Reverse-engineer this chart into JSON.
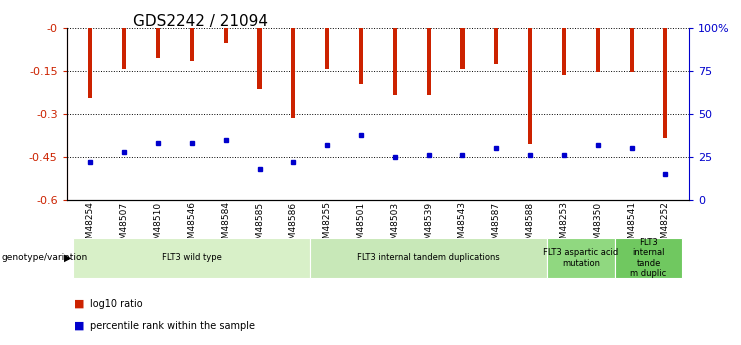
{
  "title": "GDS2242 / 21094",
  "samples": [
    "GSM48254",
    "GSM48507",
    "GSM48510",
    "GSM48546",
    "GSM48584",
    "GSM48585",
    "GSM48586",
    "GSM48255",
    "GSM48501",
    "GSM48503",
    "GSM48539",
    "GSM48543",
    "GSM48587",
    "GSM48588",
    "GSM48253",
    "GSM48350",
    "GSM48541",
    "GSM48252"
  ],
  "log10_ratio": [
    -0.245,
    -0.145,
    -0.105,
    -0.115,
    -0.055,
    -0.215,
    -0.315,
    -0.145,
    -0.195,
    -0.235,
    -0.235,
    -0.145,
    -0.125,
    -0.405,
    -0.165,
    -0.155,
    -0.155,
    -0.385
  ],
  "percentile_rank": [
    22,
    28,
    33,
    33,
    35,
    18,
    22,
    32,
    38,
    25,
    26,
    26,
    30,
    26,
    26,
    32,
    30,
    15
  ],
  "groups": [
    {
      "label": "FLT3 wild type",
      "start": 0,
      "end": 7,
      "color": "#d8f0c8"
    },
    {
      "label": "FLT3 internal tandem duplications",
      "start": 7,
      "end": 14,
      "color": "#c8e8b8"
    },
    {
      "label": "FLT3 aspartic acid\nmutation",
      "start": 14,
      "end": 16,
      "color": "#90d880"
    },
    {
      "label": "FLT3\ninternal\ntande\nm duplic",
      "start": 16,
      "end": 18,
      "color": "#70c860"
    }
  ],
  "ylim_left": [
    -0.6,
    0.0
  ],
  "ylim_right": [
    0,
    100
  ],
  "yticks_left": [
    -0.6,
    -0.45,
    -0.3,
    -0.15,
    0.0
  ],
  "ytick_labels_left": [
    "-0.6",
    "-0.45",
    "-0.3",
    "-0.15",
    "-0"
  ],
  "yticks_right": [
    0,
    25,
    50,
    75,
    100
  ],
  "ytick_labels_right": [
    "0",
    "25",
    "50",
    "75",
    "100%"
  ],
  "bar_color": "#cc2200",
  "dot_color": "#0000cc",
  "bar_width": 0.12,
  "legend_items": [
    {
      "label": "log10 ratio",
      "color": "#cc2200"
    },
    {
      "label": "percentile rank within the sample",
      "color": "#0000cc"
    }
  ]
}
